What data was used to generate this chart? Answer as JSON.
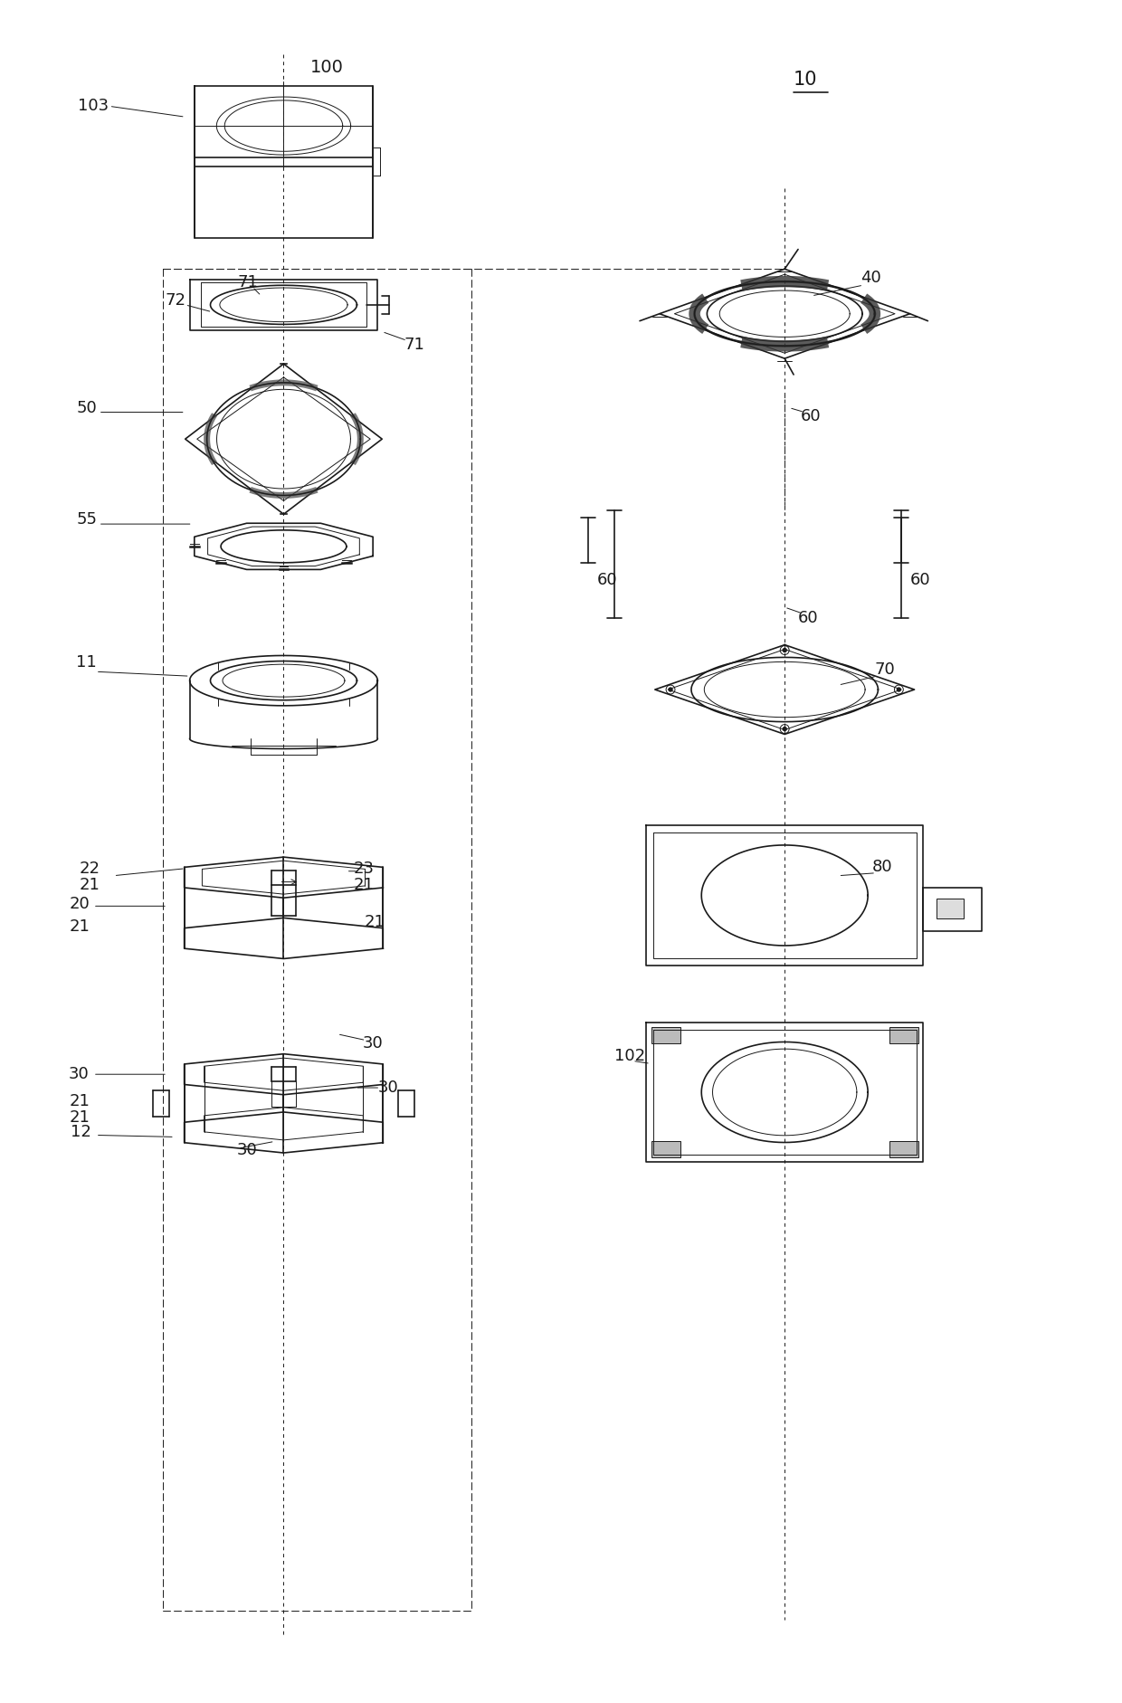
{
  "bg_color": "#ffffff",
  "line_color": "#1a1a1a",
  "fig_width": 12.4,
  "fig_height": 18.82,
  "dpi": 100
}
